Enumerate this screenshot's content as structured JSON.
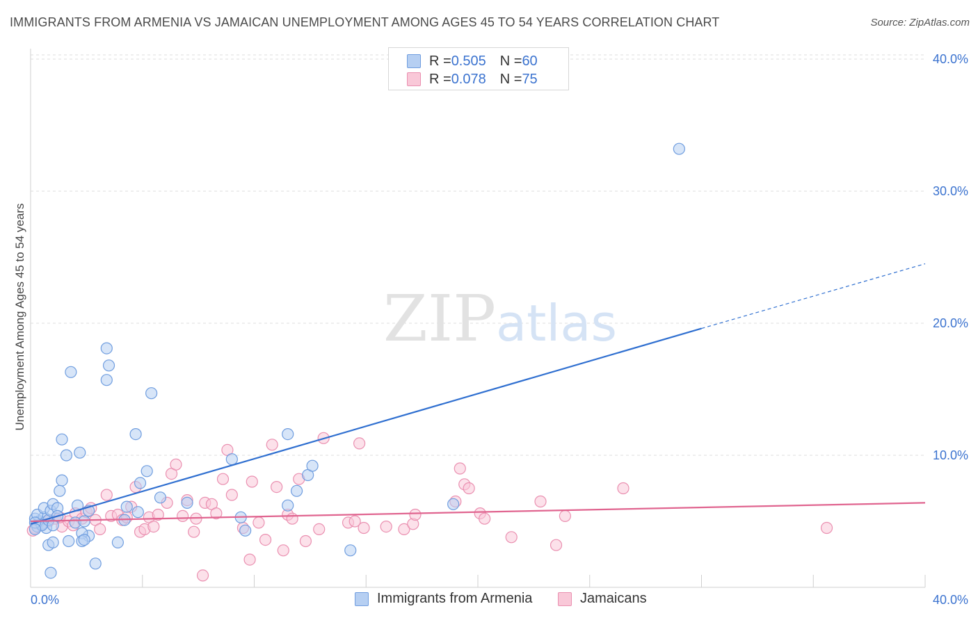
{
  "title": "IMMIGRANTS FROM ARMENIA VS JAMAICAN UNEMPLOYMENT AMONG AGES 45 TO 54 YEARS CORRELATION CHART",
  "source": "Source: ZipAtlas.com",
  "watermark": {
    "zip": "ZIP",
    "atlas": "atlas"
  },
  "legend": {
    "series1": {
      "r_label": "R = ",
      "r_value": "0.505",
      "n_label": "N = ",
      "n_value": "60"
    },
    "series2": {
      "r_label": "R = ",
      "r_value": "0.078",
      "n_label": "N = ",
      "n_value": "75"
    }
  },
  "bottom_legend": {
    "series1": "Immigrants from Armenia",
    "series2": "Jamaicans"
  },
  "colors": {
    "blue_fill": "#b6cff2",
    "blue_stroke": "#6f9ddf",
    "blue_line": "#2f6fd0",
    "pink_fill": "#f9c8d8",
    "pink_stroke": "#ea8fb0",
    "pink_line": "#e0648f",
    "axis_label": "#3a72cf",
    "grid": "#dedede"
  },
  "chart_data": {
    "type": "scatter",
    "title": "IMMIGRANTS FROM ARMENIA VS JAMAICAN UNEMPLOYMENT AMONG AGES 45 TO 54 YEARS CORRELATION CHART",
    "xlabel": "",
    "ylabel": "Unemployment Among Ages 45 to 54 years",
    "xlim": [
      0,
      40
    ],
    "ylim": [
      0,
      41
    ],
    "x_tick_labels": [
      {
        "value": 0,
        "label": "0.0%"
      },
      {
        "value": 40,
        "label": "40.0%"
      }
    ],
    "y_tick_labels": [
      {
        "value": 10,
        "label": "10.0%"
      },
      {
        "value": 20,
        "label": "20.0%"
      },
      {
        "value": 30,
        "label": "30.0%"
      },
      {
        "value": 40,
        "label": "40.0%"
      }
    ],
    "series": [
      {
        "name": "Immigrants from Armenia",
        "R": 0.505,
        "N": 60,
        "trendline": {
          "x0": 0,
          "y0": 4.8,
          "x1": 30,
          "y1": 19.6,
          "dashed_to_x": 40,
          "dashed_to_y": 24.5
        },
        "points": [
          [
            0.2,
            5.2
          ],
          [
            0.3,
            4.6
          ],
          [
            0.4,
            5.0
          ],
          [
            0.5,
            4.8
          ],
          [
            0.6,
            5.3
          ],
          [
            0.7,
            4.5
          ],
          [
            0.3,
            5.5
          ],
          [
            0.5,
            4.7
          ],
          [
            0.8,
            5.1
          ],
          [
            0.2,
            4.9
          ],
          [
            0.6,
            6.0
          ],
          [
            0.9,
            5.8
          ],
          [
            1.0,
            6.3
          ],
          [
            1.2,
            6.0
          ],
          [
            1.0,
            4.7
          ],
          [
            1.2,
            5.4
          ],
          [
            1.4,
            8.1
          ],
          [
            1.3,
            7.3
          ],
          [
            1.4,
            11.2
          ],
          [
            1.6,
            10.0
          ],
          [
            1.8,
            16.3
          ],
          [
            2.2,
            10.2
          ],
          [
            2.1,
            6.2
          ],
          [
            2.0,
            4.9
          ],
          [
            2.4,
            5.0
          ],
          [
            2.6,
            5.8
          ],
          [
            2.6,
            3.9
          ],
          [
            2.3,
            4.1
          ],
          [
            2.3,
            3.5
          ],
          [
            2.4,
            3.6
          ],
          [
            3.4,
            18.1
          ],
          [
            3.5,
            16.8
          ],
          [
            3.4,
            15.7
          ],
          [
            2.9,
            1.8
          ],
          [
            3.9,
            3.4
          ],
          [
            4.2,
            5.1
          ],
          [
            4.3,
            6.1
          ],
          [
            4.7,
            11.6
          ],
          [
            4.8,
            5.7
          ],
          [
            4.9,
            7.9
          ],
          [
            5.2,
            8.8
          ],
          [
            5.4,
            14.7
          ],
          [
            5.8,
            6.8
          ],
          [
            7.0,
            6.4
          ],
          [
            9.0,
            9.7
          ],
          [
            9.4,
            5.3
          ],
          [
            9.6,
            4.3
          ],
          [
            11.5,
            11.6
          ],
          [
            11.5,
            6.2
          ],
          [
            11.9,
            7.3
          ],
          [
            12.4,
            8.5
          ],
          [
            12.6,
            9.2
          ],
          [
            14.3,
            2.8
          ],
          [
            18.9,
            6.3
          ],
          [
            29.0,
            33.2
          ],
          [
            0.8,
            3.2
          ],
          [
            1.7,
            3.5
          ],
          [
            1.0,
            3.4
          ],
          [
            0.9,
            1.1
          ],
          [
            0.2,
            4.4
          ]
        ]
      },
      {
        "name": "Jamaicans",
        "R": 0.078,
        "N": 75,
        "trendline": {
          "x0": 0,
          "y0": 5.0,
          "x1": 40,
          "y1": 6.4
        },
        "points": [
          [
            0.2,
            4.5
          ],
          [
            0.5,
            4.8
          ],
          [
            0.8,
            5.0
          ],
          [
            1.1,
            5.2
          ],
          [
            1.4,
            4.6
          ],
          [
            1.7,
            5.0
          ],
          [
            1.9,
            4.7
          ],
          [
            2.0,
            5.6
          ],
          [
            2.3,
            5.2
          ],
          [
            2.5,
            5.7
          ],
          [
            2.7,
            6.0
          ],
          [
            2.9,
            5.1
          ],
          [
            3.1,
            4.4
          ],
          [
            3.4,
            7.0
          ],
          [
            3.6,
            5.4
          ],
          [
            3.9,
            5.5
          ],
          [
            4.1,
            5.1
          ],
          [
            4.3,
            5.3
          ],
          [
            4.5,
            6.1
          ],
          [
            4.7,
            7.6
          ],
          [
            4.9,
            4.2
          ],
          [
            5.1,
            4.4
          ],
          [
            5.3,
            5.3
          ],
          [
            5.5,
            4.6
          ],
          [
            5.7,
            5.5
          ],
          [
            6.1,
            6.4
          ],
          [
            6.3,
            8.6
          ],
          [
            6.5,
            9.3
          ],
          [
            6.8,
            5.4
          ],
          [
            7.0,
            6.6
          ],
          [
            7.3,
            4.2
          ],
          [
            7.4,
            5.2
          ],
          [
            7.7,
            0.9
          ],
          [
            7.8,
            6.4
          ],
          [
            8.1,
            6.3
          ],
          [
            8.3,
            5.6
          ],
          [
            8.6,
            8.2
          ],
          [
            8.8,
            10.4
          ],
          [
            9.0,
            7.0
          ],
          [
            9.5,
            4.5
          ],
          [
            9.8,
            2.1
          ],
          [
            9.9,
            8.0
          ],
          [
            10.2,
            4.9
          ],
          [
            10.5,
            3.6
          ],
          [
            10.8,
            10.8
          ],
          [
            11.0,
            7.6
          ],
          [
            11.3,
            2.8
          ],
          [
            11.5,
            5.5
          ],
          [
            11.7,
            5.2
          ],
          [
            12.0,
            8.2
          ],
          [
            12.3,
            3.5
          ],
          [
            12.9,
            4.4
          ],
          [
            13.1,
            11.3
          ],
          [
            14.2,
            4.9
          ],
          [
            14.5,
            5.0
          ],
          [
            14.7,
            10.9
          ],
          [
            14.9,
            4.5
          ],
          [
            15.9,
            4.6
          ],
          [
            16.7,
            4.4
          ],
          [
            17.1,
            4.8
          ],
          [
            17.2,
            5.5
          ],
          [
            19.0,
            6.5
          ],
          [
            19.2,
            9.0
          ],
          [
            19.4,
            7.8
          ],
          [
            19.6,
            7.5
          ],
          [
            20.1,
            5.6
          ],
          [
            20.3,
            5.2
          ],
          [
            21.5,
            3.8
          ],
          [
            22.8,
            6.5
          ],
          [
            23.5,
            3.2
          ],
          [
            23.9,
            5.4
          ],
          [
            26.5,
            7.5
          ],
          [
            35.6,
            4.5
          ],
          [
            0.1,
            4.3
          ],
          [
            1.3,
            5.3
          ]
        ]
      }
    ]
  }
}
